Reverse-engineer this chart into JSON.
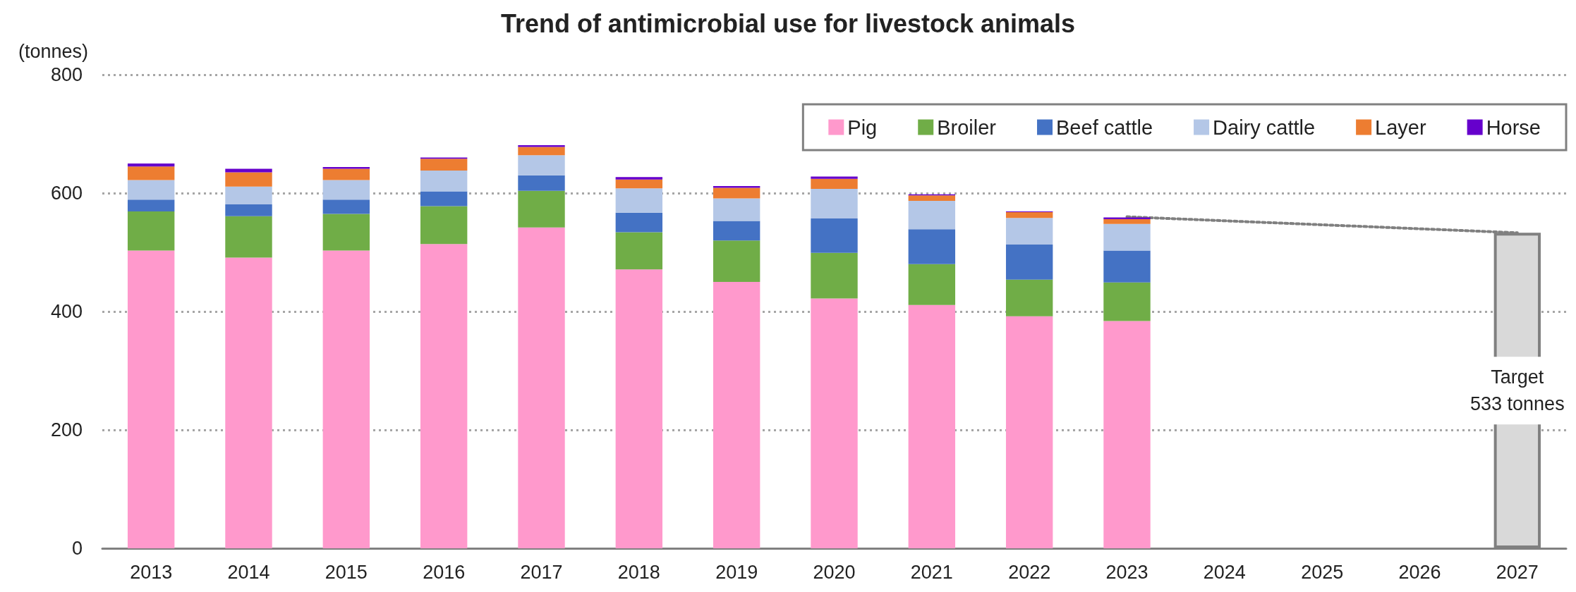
{
  "chart_data": {
    "type": "bar",
    "title": "Trend of antimicrobial use for livestock animals",
    "ylabel": "(tonnes)",
    "categories": [
      "2013",
      "2014",
      "2015",
      "2016",
      "2017",
      "2018",
      "2019",
      "2020",
      "2021",
      "2022",
      "2023",
      "2024",
      "2025",
      "2026",
      "2027"
    ],
    "stacked": true,
    "ylim": [
      0,
      800
    ],
    "yticks": [
      0,
      200,
      400,
      600,
      800
    ],
    "grid": "y",
    "legend": "top right",
    "series": [
      {
        "name": "Pig",
        "color": "#ff99cc",
        "values": [
          503,
          491,
          503,
          514,
          542,
          471,
          450,
          422,
          411,
          392,
          384,
          null,
          null,
          null,
          null
        ]
      },
      {
        "name": "Broiler",
        "color": "#70ad47",
        "values": [
          66,
          70,
          62,
          64,
          62,
          63,
          70,
          77,
          69,
          62,
          65,
          null,
          null,
          null,
          null
        ]
      },
      {
        "name": "Beef cattle",
        "color": "#4472c4",
        "values": [
          20,
          20,
          24,
          25,
          26,
          33,
          33,
          58,
          59,
          59,
          54,
          null,
          null,
          null,
          null
        ]
      },
      {
        "name": "Dairy cattle",
        "color": "#b4c7e7",
        "values": [
          33,
          30,
          33,
          35,
          34,
          41,
          38,
          50,
          48,
          45,
          45,
          null,
          null,
          null,
          null
        ]
      },
      {
        "name": "Layer",
        "color": "#ed7d31",
        "values": [
          23,
          24,
          19,
          20,
          14,
          15,
          18,
          17,
          9,
          10,
          8,
          null,
          null,
          null,
          null
        ]
      },
      {
        "name": "Horse",
        "color": "#6600cc",
        "values": [
          5,
          6,
          3,
          2,
          3,
          4,
          3,
          4,
          2,
          1,
          3,
          null,
          null,
          null,
          null
        ]
      },
      {
        "color": "#d9d9d9",
        "values": [
          null,
          null,
          null,
          null,
          null,
          null,
          null,
          null,
          null,
          null,
          null,
          null,
          null,
          null,
          533
        ],
        "value_labels": [
          null,
          null,
          null,
          null,
          null,
          null,
          null,
          null,
          null,
          null,
          null,
          null,
          null,
          null,
          "Target\n533 tonnes"
        ]
      },
      {
        "type": "line",
        "color": "#7f7f7f",
        "line_style": "dotted",
        "marker": "none",
        "values": [
          null,
          null,
          null,
          null,
          null,
          null,
          null,
          null,
          null,
          null,
          560,
          null,
          null,
          null,
          533
        ]
      }
    ]
  }
}
